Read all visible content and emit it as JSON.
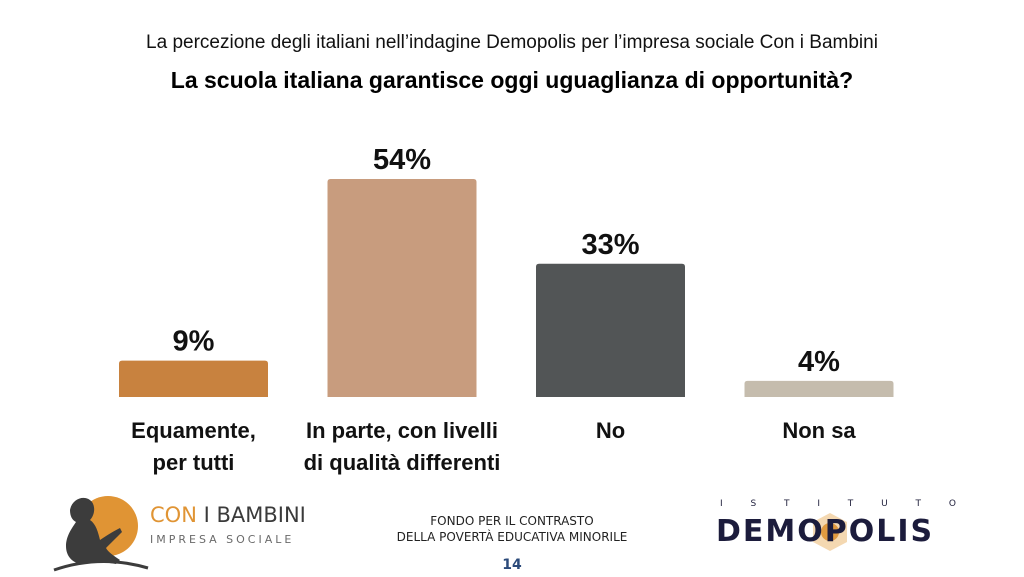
{
  "header": {
    "subtitle": "La percezione degli italiani nell’indagine Demopolis per l’impresa sociale Con i Bambini",
    "title": "La scuola italiana garantisce oggi uguaglianza di opportunità?"
  },
  "chart_data": {
    "type": "bar",
    "title": "La scuola italiana garantisce oggi uguaglianza di opportunità?",
    "subtitle": "La percezione degli italiani nell’indagine Demopolis per l’impresa sociale Con i Bambini",
    "xlabel": "",
    "ylabel": "",
    "ylim": [
      0,
      54
    ],
    "grid": false,
    "legend": "none",
    "categories": [
      [
        "Equamente,",
        "per tutti"
      ],
      [
        "In parte, con livelli",
        "di qualità differenti"
      ],
      [
        "No"
      ],
      [
        "Non sa"
      ]
    ],
    "values": [
      9,
      54,
      33,
      4
    ],
    "value_labels": [
      "9%",
      "54%",
      "33%",
      "4%"
    ],
    "colors": [
      "#c8823f",
      "#c89c7e",
      "#525556",
      "#c5bcad"
    ]
  },
  "footer": {
    "left_logo": {
      "brand_part1": "CON",
      "brand_part2": "I BAMBINI",
      "tagline": "IMPRESA SOCIALE",
      "icon": "child-reading-silhouette-icon",
      "accent_color": "#e09434"
    },
    "center_text_line1": "FONDO PER IL CONTRASTO",
    "center_text_line2": "DELLA POVERTÀ EDUCATIVA MINORILE",
    "page_number": "14",
    "right_logo": {
      "top_letters": [
        "I",
        "S",
        "T",
        "I",
        "T",
        "U",
        "T",
        "O"
      ],
      "name_part1": "DEM",
      "name_part2": "O",
      "name_part3": "POLIS",
      "color": "#1c1c3c"
    }
  }
}
